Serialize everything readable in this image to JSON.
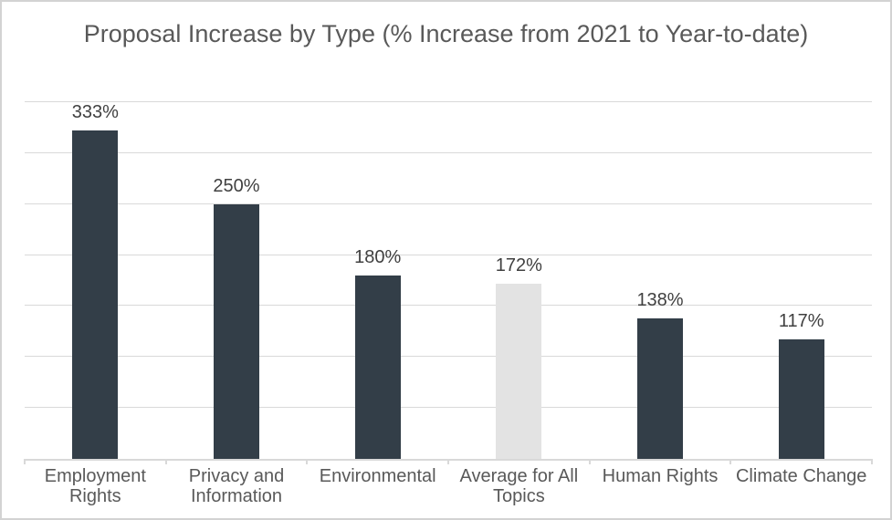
{
  "chart_data": {
    "type": "bar",
    "title": "Proposal Increase by Type (% Increase from 2021 to Year-to-date)",
    "categories": [
      "Employment Rights",
      "Privacy and Information",
      "Environmental",
      "Average for All Topics",
      "Human Rights",
      "Climate Change"
    ],
    "values": [
      333,
      250,
      180,
      172,
      138,
      117
    ],
    "data_labels": [
      "333%",
      "250%",
      "180%",
      "172%",
      "138%",
      "117%"
    ],
    "xlabel": "",
    "ylabel": "",
    "ylim": [
      0,
      350
    ],
    "gridline_step": 50,
    "grid": true,
    "legend": false,
    "y_axis_labels_visible": false,
    "highlight_index": 3,
    "colors": {
      "bar": "#333e48",
      "highlight_bar": "#e3e3e3",
      "gridline": "#d9d9d9",
      "axis": "#d9d9d9",
      "title_text": "#595959",
      "value_label_text": "#404040",
      "category_text": "#595959",
      "background": "#ffffff",
      "border": "#d3d3d3"
    }
  }
}
